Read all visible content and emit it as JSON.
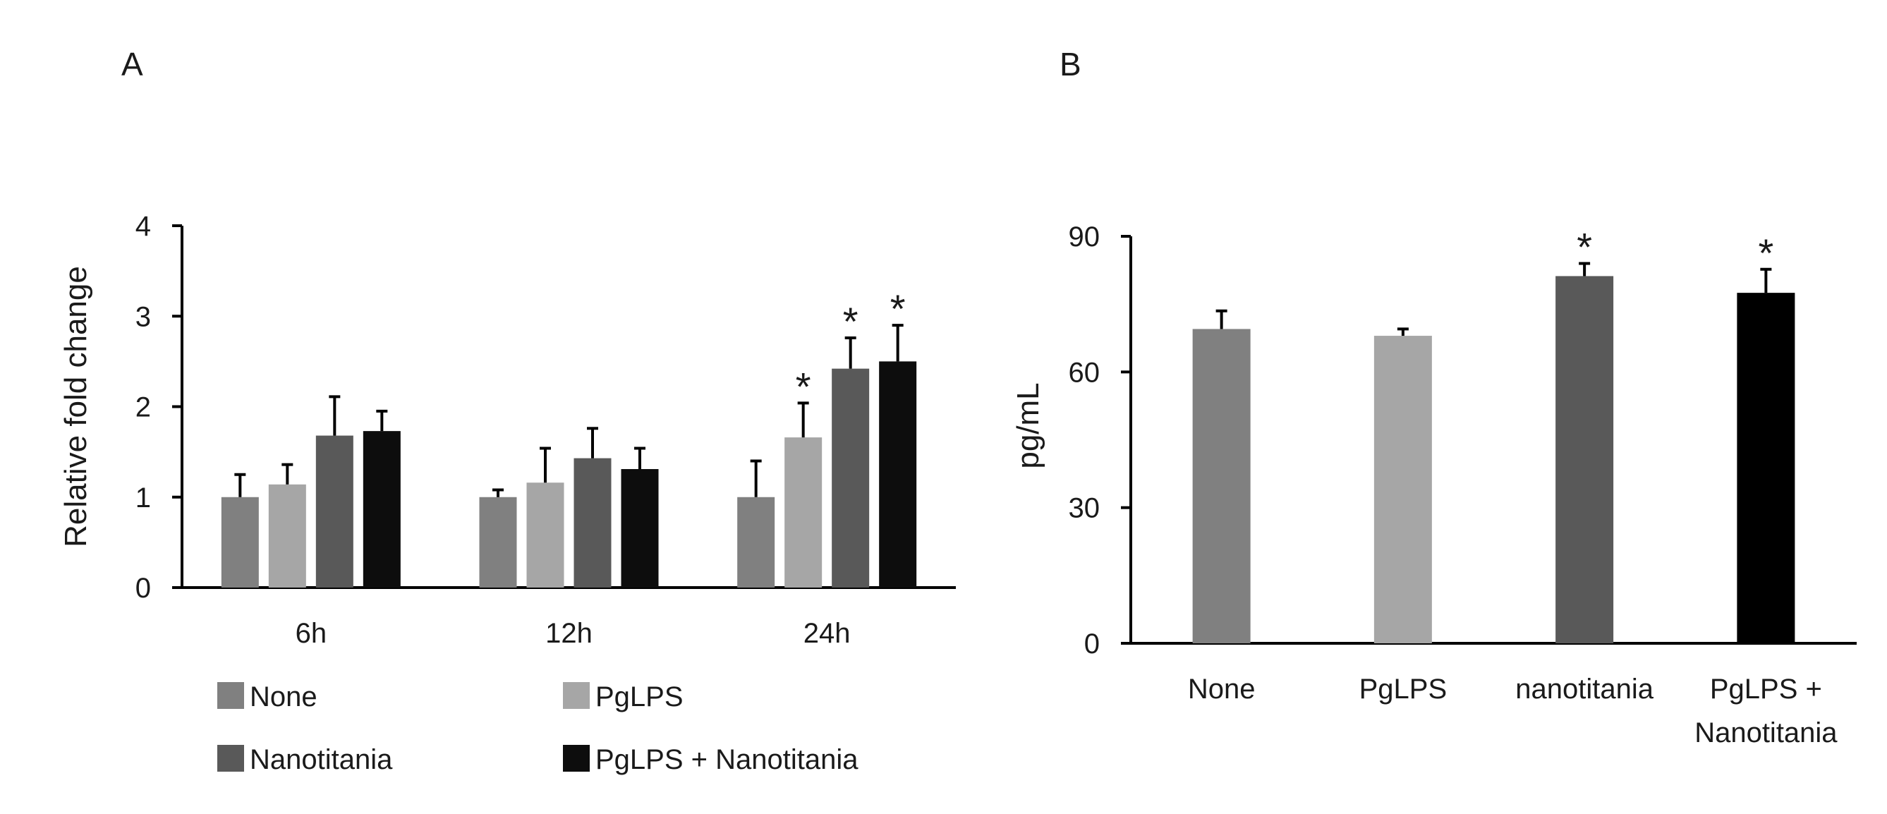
{
  "chart_data": [
    {
      "panel": "A",
      "type": "bar",
      "ylabel": "Relative fold change",
      "xlabel": "",
      "ylim": [
        0,
        4
      ],
      "yticks": [
        0,
        1,
        2,
        3,
        4
      ],
      "categories": [
        "6h",
        "12h",
        "24h"
      ],
      "series": [
        {
          "name": "None",
          "color": "#808080",
          "values": [
            1.0,
            1.0,
            1.0
          ],
          "errors": [
            0.25,
            0.08,
            0.4
          ],
          "significant": [
            false,
            false,
            false
          ]
        },
        {
          "name": "PgLPS",
          "color": "#a6a6a6",
          "values": [
            1.14,
            1.16,
            1.66
          ],
          "errors": [
            0.22,
            0.38,
            0.38
          ],
          "significant": [
            false,
            false,
            true
          ]
        },
        {
          "name": "Nanotitania",
          "color": "#595959",
          "values": [
            1.68,
            1.43,
            2.42
          ],
          "errors": [
            0.43,
            0.33,
            0.34
          ],
          "significant": [
            false,
            false,
            true
          ]
        },
        {
          "name": "PgLPS + Nanotitania",
          "color": "#0d0d0d",
          "values": [
            1.73,
            1.31,
            2.5
          ],
          "errors": [
            0.22,
            0.23,
            0.4
          ],
          "significant": [
            false,
            false,
            true
          ]
        }
      ],
      "significance_marker": "*"
    },
    {
      "panel": "B",
      "type": "bar",
      "ylabel": "pg/mL",
      "xlabel": "",
      "ylim": [
        0,
        90
      ],
      "yticks": [
        0,
        30,
        60,
        90
      ],
      "categories": [
        "None",
        "PgLPS",
        "nanotitania",
        "PgLPS + Nanotitania"
      ],
      "category_lines": [
        [
          "None"
        ],
        [
          "PgLPS"
        ],
        [
          "nanotitania"
        ],
        [
          "PgLPS +",
          "Nanotitania"
        ]
      ],
      "colors": [
        "#808080",
        "#a6a6a6",
        "#595959",
        "#000000"
      ],
      "values": [
        69.5,
        68.0,
        81.2,
        77.5
      ],
      "errors": [
        4.0,
        1.5,
        2.8,
        5.2
      ],
      "significant": [
        false,
        false,
        true,
        true
      ],
      "significance_marker": "*"
    }
  ]
}
